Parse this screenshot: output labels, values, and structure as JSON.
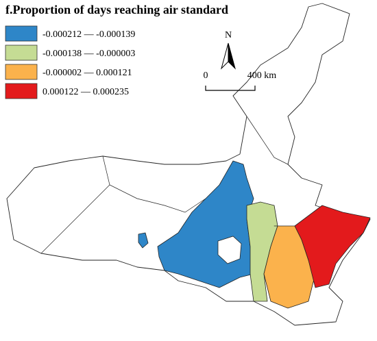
{
  "title": "f.Proportion of days reaching air standard",
  "legend": [
    {
      "label": "-0.000212 — -0.000139",
      "color": "#2e86c8"
    },
    {
      "label": "-0.000138 — -0.000003",
      "color": "#c5dc94"
    },
    {
      "label": "-0.000002 — 0.000121",
      "color": "#fbb24c"
    },
    {
      "label": "0.000122 — 0.000235",
      "color": "#e31a1c"
    }
  ],
  "north_label": "N",
  "scale_bar": {
    "labels": [
      "0",
      "400 km"
    ]
  }
}
